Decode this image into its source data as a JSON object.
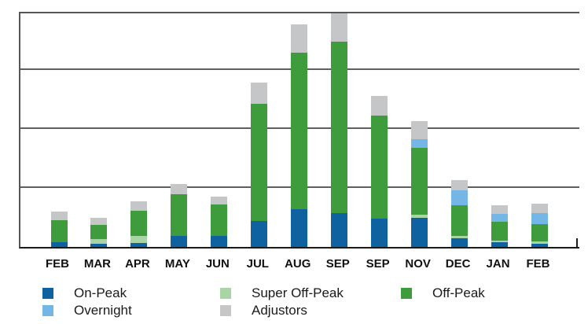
{
  "chart_data": {
    "type": "bar",
    "stacked": true,
    "title": "",
    "xlabel": "",
    "ylabel": "",
    "categories": [
      "FEB",
      "MAR",
      "APR",
      "MAY",
      "JUN",
      "JUL",
      "AUG",
      "SEP",
      "SEP",
      "NOV",
      "DEC",
      "JAN",
      "FEB"
    ],
    "series": [
      {
        "name": "On-Peak",
        "color": "#0F62A0",
        "values": [
          2.0,
          1.5,
          1.7,
          4.7,
          4.8,
          11.0,
          16.0,
          14.3,
          12.0,
          12.3,
          3.8,
          2.0,
          1.3
        ]
      },
      {
        "name": "Super Off-Peak",
        "color": "#A9D5A5",
        "values": [
          0,
          1.7,
          3.0,
          0,
          0,
          0,
          0,
          0,
          0,
          1.3,
          0.8,
          0.7,
          1.0
        ]
      },
      {
        "name": "Off-Peak",
        "color": "#3F9C3D",
        "values": [
          9.3,
          6.0,
          10.7,
          17.7,
          13.3,
          49.7,
          66.3,
          72.7,
          43.7,
          28.3,
          13.0,
          8.0,
          7.3
        ]
      },
      {
        "name": "Overnight",
        "color": "#74B6E5",
        "values": [
          0,
          0,
          0,
          0,
          0,
          0,
          0,
          0,
          0,
          3.7,
          6.3,
          3.3,
          4.7
        ]
      },
      {
        "name": "Adjustors",
        "color": "#C5C6C7",
        "values": [
          3.7,
          3.0,
          4.0,
          4.2,
          3.3,
          9.0,
          12.0,
          12.0,
          8.3,
          7.7,
          4.3,
          3.7,
          4.0
        ]
      }
    ],
    "ylim": [
      0,
      100
    ],
    "gridline_step": 25,
    "grid": true,
    "y_tick_labels_visible": false,
    "legend_position": "bottom"
  },
  "legend": {
    "columns": [
      [
        {
          "label": "On-Peak",
          "color": "#0F62A0"
        },
        {
          "label": "Overnight",
          "color": "#74B6E5"
        }
      ],
      [
        {
          "label": "Super Off-Peak",
          "color": "#A9D5A5"
        },
        {
          "label": "Adjustors",
          "color": "#C5C6C7"
        }
      ],
      [
        {
          "label": "Off-Peak",
          "color": "#3F9C3D"
        }
      ]
    ]
  },
  "colors": {
    "gridline": "#5F5F5F",
    "axis": "#1A1A1A",
    "background": "#FFFFFF"
  }
}
